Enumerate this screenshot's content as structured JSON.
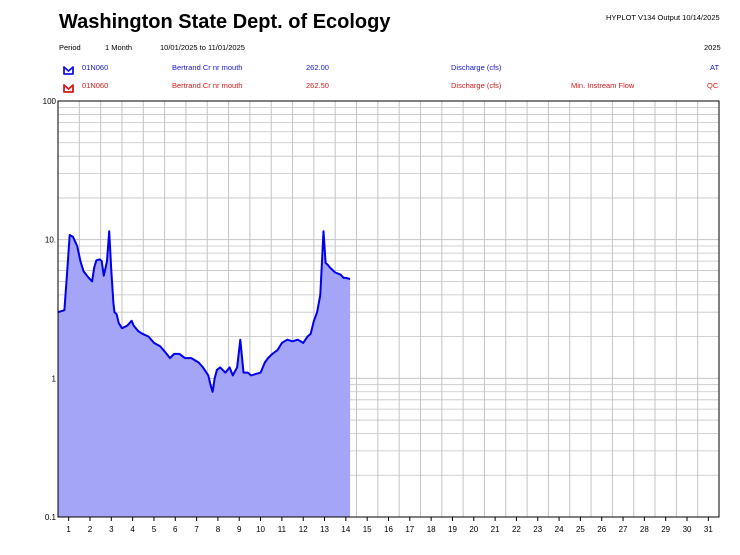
{
  "header": {
    "title": "Washington State Dept. of Ecology",
    "meta": "HYPLOT V134  Output 10/14/2025",
    "period_label": "Period",
    "period_value": "1 Month",
    "date_range": "10/01/2025  to  11/01/2025",
    "year": "2025"
  },
  "legend": [
    {
      "station": "01N060",
      "site": "Bertrand Cr nr mouth",
      "code": "262.00",
      "param": "Discharge (cfs)",
      "note": "",
      "flag": "AT",
      "color": "#1515d9"
    },
    {
      "station": "01N060",
      "site": "Bertrand Cr nr mouth",
      "code": "262.50",
      "param": "Discharge (cfs)",
      "note": "Min. Instream Flow",
      "flag": "QC",
      "color": "#d41a1a"
    }
  ],
  "colors": {
    "series_line": "#0000ee",
    "series_fill": "#a5a5f7",
    "grid": "#c4c4c4"
  },
  "chart_data": {
    "type": "area",
    "y_scale": "log",
    "ylim": [
      0.1,
      100
    ],
    "y_ticks": [
      "100",
      "10.",
      "1",
      "0.1"
    ],
    "x_ticks": [
      "1",
      "2",
      "3",
      "4",
      "5",
      "6",
      "7",
      "8",
      "9",
      "10",
      "11",
      "12",
      "13",
      "14",
      "15",
      "16",
      "17",
      "18",
      "19",
      "20",
      "21",
      "22",
      "23",
      "24",
      "25",
      "26",
      "27",
      "28",
      "29",
      "30",
      "31"
    ],
    "xlim": [
      0.5,
      31.5
    ],
    "grid": true,
    "series": [
      {
        "x": [
          0.5,
          0.8,
          0.95,
          1.05,
          1.2,
          1.4,
          1.55,
          1.7,
          1.9,
          2.1,
          2.2,
          2.3,
          2.45,
          2.55,
          2.65,
          2.8,
          2.9,
          3.0,
          3.1,
          3.15,
          3.25,
          3.35,
          3.5,
          3.75,
          3.95,
          4.05,
          4.25,
          4.45,
          4.75,
          5.0,
          5.3,
          5.6,
          5.75,
          5.95,
          6.2,
          6.45,
          6.75,
          7.1,
          7.3,
          7.55,
          7.65,
          7.75,
          7.85,
          7.95,
          8.1,
          8.35,
          8.55,
          8.7,
          8.9,
          9.05,
          9.2,
          9.4,
          9.55,
          10.0,
          10.2,
          10.35,
          10.55,
          10.8,
          11.0,
          11.25,
          11.5,
          11.75,
          12.0,
          12.2,
          12.35,
          12.5,
          12.65,
          12.8,
          12.95,
          13.05,
          13.15,
          13.25,
          13.5,
          13.75,
          13.9,
          14.0,
          14.2
        ],
        "y": [
          3.0,
          3.1,
          6.5,
          10.8,
          10.5,
          9.0,
          7.0,
          5.9,
          5.4,
          5.0,
          6.3,
          7.1,
          7.2,
          7.0,
          5.5,
          7.0,
          11.5,
          6.0,
          3.5,
          3.0,
          2.9,
          2.5,
          2.3,
          2.4,
          2.6,
          2.4,
          2.2,
          2.1,
          2.0,
          1.8,
          1.7,
          1.5,
          1.4,
          1.5,
          1.5,
          1.4,
          1.4,
          1.3,
          1.2,
          1.05,
          0.9,
          0.8,
          1.0,
          1.15,
          1.2,
          1.1,
          1.2,
          1.05,
          1.2,
          1.9,
          1.1,
          1.1,
          1.05,
          1.1,
          1.3,
          1.4,
          1.5,
          1.6,
          1.8,
          1.9,
          1.85,
          1.9,
          1.8,
          2.0,
          2.1,
          2.6,
          3.0,
          4.0,
          11.5,
          6.8,
          6.6,
          6.3,
          5.8,
          5.6,
          5.3,
          5.3,
          5.2
        ]
      }
    ]
  }
}
